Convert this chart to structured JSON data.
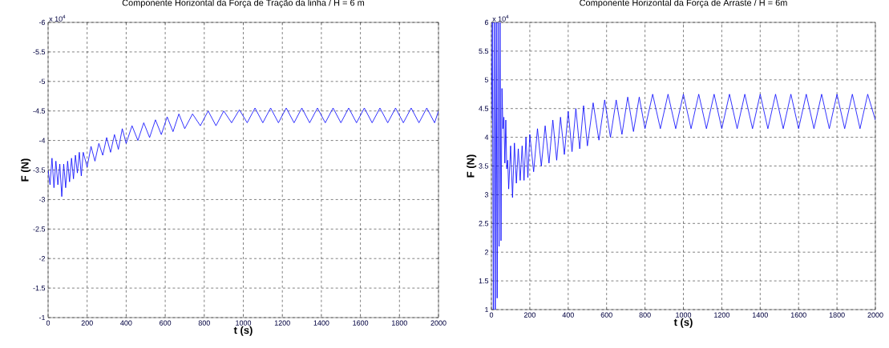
{
  "chart_data": [
    {
      "type": "line",
      "title": "Componente Horizontal da Força de Tração da linha / H = 6 m",
      "xlabel": "t (s)",
      "ylabel": "F (N)",
      "annotations": [
        "x 10$^{4}$"
      ],
      "grid": true,
      "xlim": [
        0,
        2000
      ],
      "xticks": [
        0,
        200,
        400,
        600,
        800,
        1000,
        1200,
        1400,
        1600,
        1800,
        2000
      ],
      "ylim": [
        -1,
        -6
      ],
      "yticks": [
        -6,
        -5.5,
        -5,
        -4.5,
        -4,
        -3.5,
        -3,
        -2.5,
        -2,
        -1.5,
        -1
      ],
      "series": [
        {
          "color": "#0000ff",
          "x": [
            0,
            10,
            20,
            30,
            40,
            50,
            60,
            70,
            80,
            90,
            100,
            110,
            120,
            130,
            140,
            150,
            160,
            170,
            180,
            200,
            220,
            240,
            260,
            280,
            300,
            320,
            340,
            360,
            380,
            400,
            430,
            460,
            490,
            520,
            550,
            580,
            610,
            640,
            670,
            700,
            740,
            780,
            820,
            860,
            900,
            940,
            980,
            1020,
            1060,
            1100,
            1140,
            1180,
            1220,
            1260,
            1300,
            1340,
            1380,
            1420,
            1460,
            1500,
            1540,
            1580,
            1620,
            1660,
            1700,
            1740,
            1780,
            1820,
            1860,
            1900,
            1940,
            1980,
            2000
          ],
          "values": [
            -3.5,
            -3.25,
            -3.7,
            -3.2,
            -3.65,
            -3.25,
            -3.6,
            -3.05,
            -3.6,
            -3.2,
            -3.65,
            -3.3,
            -3.7,
            -3.35,
            -3.75,
            -3.45,
            -3.8,
            -3.4,
            -3.8,
            -3.55,
            -3.9,
            -3.65,
            -3.95,
            -3.75,
            -4.05,
            -3.8,
            -4.1,
            -3.85,
            -4.2,
            -3.95,
            -4.25,
            -4.0,
            -4.3,
            -4.05,
            -4.35,
            -4.1,
            -4.4,
            -4.15,
            -4.45,
            -4.2,
            -4.45,
            -4.25,
            -4.5,
            -4.25,
            -4.5,
            -4.3,
            -4.52,
            -4.3,
            -4.55,
            -4.3,
            -4.55,
            -4.3,
            -4.55,
            -4.3,
            -4.55,
            -4.3,
            -4.55,
            -4.3,
            -4.55,
            -4.3,
            -4.55,
            -4.3,
            -4.55,
            -4.3,
            -4.55,
            -4.3,
            -4.55,
            -4.3,
            -4.55,
            -4.3,
            -4.55,
            -4.3,
            -4.5
          ]
        }
      ]
    },
    {
      "type": "line",
      "title": "Componente Horizontal da Força de Arraste / H = 6m",
      "xlabel": "t (s)",
      "ylabel": "F (N)",
      "annotations": [
        "x 10$^{4}$"
      ],
      "grid": true,
      "xlim": [
        0,
        2000
      ],
      "xticks": [
        0,
        200,
        400,
        600,
        800,
        1000,
        1200,
        1400,
        1600,
        1800,
        2000
      ],
      "ylim": [
        1,
        6
      ],
      "yticks": [
        1,
        1.5,
        2,
        2.5,
        3,
        3.5,
        4,
        4.5,
        5,
        5.5,
        6
      ],
      "series": [
        {
          "color": "#0000ff",
          "x": [
            0,
            5,
            10,
            15,
            20,
            25,
            30,
            35,
            40,
            45,
            50,
            55,
            60,
            65,
            70,
            75,
            80,
            85,
            90,
            100,
            110,
            120,
            130,
            140,
            150,
            160,
            170,
            180,
            190,
            200,
            220,
            240,
            260,
            280,
            300,
            320,
            340,
            360,
            380,
            400,
            420,
            440,
            460,
            480,
            500,
            530,
            560,
            590,
            620,
            650,
            680,
            710,
            740,
            770,
            800,
            840,
            880,
            920,
            960,
            1000,
            1040,
            1080,
            1120,
            1160,
            1200,
            1240,
            1280,
            1320,
            1360,
            1400,
            1440,
            1480,
            1520,
            1560,
            1600,
            1640,
            1680,
            1720,
            1760,
            1800,
            1840,
            1880,
            1920,
            1960,
            2000
          ],
          "values": [
            4.3,
            6,
            1,
            6,
            1,
            6,
            1.2,
            6,
            2.1,
            6,
            2.2,
            4.85,
            4.15,
            4.35,
            3.55,
            4.3,
            3.45,
            3.6,
            3.1,
            3.85,
            2.95,
            3.9,
            3.2,
            3.8,
            3.25,
            3.85,
            3.25,
            4.0,
            3.3,
            4.05,
            3.4,
            4.15,
            3.5,
            4.2,
            3.55,
            4.3,
            3.6,
            4.35,
            3.7,
            4.45,
            3.75,
            4.5,
            3.8,
            4.55,
            3.85,
            4.6,
            3.95,
            4.65,
            4.0,
            4.65,
            4.05,
            4.7,
            4.1,
            4.7,
            4.15,
            4.75,
            4.15,
            4.75,
            4.15,
            4.75,
            4.15,
            4.75,
            4.15,
            4.75,
            4.15,
            4.75,
            4.15,
            4.75,
            4.15,
            4.75,
            4.15,
            4.75,
            4.15,
            4.75,
            4.15,
            4.75,
            4.15,
            4.75,
            4.15,
            4.75,
            4.15,
            4.75,
            4.15,
            4.75,
            4.3
          ]
        }
      ]
    }
  ]
}
